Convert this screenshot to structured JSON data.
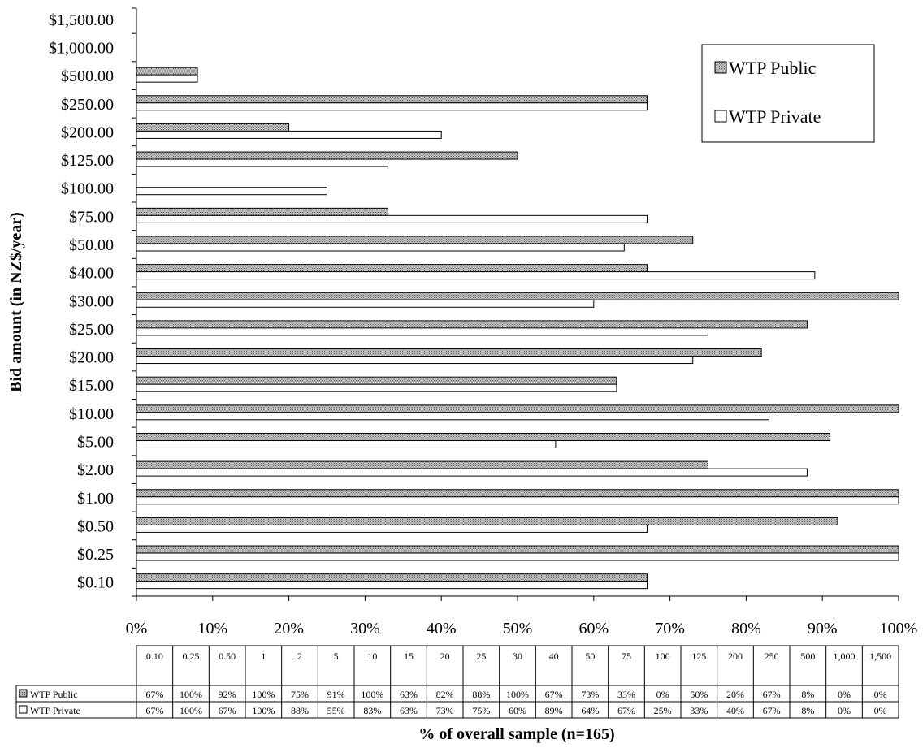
{
  "chart_data": {
    "type": "bar",
    "orientation": "horizontal",
    "categories": [
      "$0.10",
      "$0.25",
      "$0.50",
      "$1.00",
      "$2.00",
      "$5.00",
      "$10.00",
      "$15.00",
      "$20.00",
      "$25.00",
      "$30.00",
      "$40.00",
      "$50.00",
      "$75.00",
      "$100.00",
      "$125.00",
      "$200.00",
      "$250.00",
      "$500.00",
      "$1,000.00",
      "$1,500.00"
    ],
    "series": [
      {
        "name": "WTP Public",
        "values": [
          0.67,
          1.0,
          0.92,
          1.0,
          0.75,
          0.91,
          1.0,
          0.63,
          0.82,
          0.88,
          1.0,
          0.67,
          0.73,
          0.33,
          0.0,
          0.5,
          0.2,
          0.67,
          0.08,
          0.0,
          0.0
        ],
        "color": "#a8a8a8",
        "pattern": "dotted"
      },
      {
        "name": "WTP Private",
        "values": [
          0.67,
          1.0,
          0.67,
          1.0,
          0.88,
          0.55,
          0.83,
          0.63,
          0.73,
          0.75,
          0.6,
          0.89,
          0.64,
          0.67,
          0.25,
          0.33,
          0.4,
          0.67,
          0.08,
          0.0,
          0.0
        ],
        "color": "#ffffff"
      }
    ],
    "xlabel": "% of overall sample (n=165)",
    "ylabel": "Bid amount (in NZ$/year)",
    "xlim": [
      0,
      1
    ],
    "x_ticks": [
      "0%",
      "10%",
      "20%",
      "30%",
      "40%",
      "50%",
      "60%",
      "70%",
      "80%",
      "90%",
      "100%"
    ],
    "grid": false,
    "legend": {
      "placement": "top-right",
      "entries": [
        "WTP Public",
        "WTP Private"
      ]
    },
    "data_table": {
      "headers": [
        "0.10",
        "0.25",
        "0.50",
        "1",
        "2",
        "5",
        "10",
        "15",
        "20",
        "25",
        "30",
        "40",
        "50",
        "75",
        "100",
        "125",
        "200",
        "250",
        "500",
        "1,000",
        "1,500"
      ],
      "rows": [
        {
          "label": "WTP Public",
          "cells": [
            "67%",
            "100%",
            "92%",
            "100%",
            "75%",
            "91%",
            "100%",
            "63%",
            "82%",
            "88%",
            "100%",
            "67%",
            "73%",
            "33%",
            "0%",
            "50%",
            "20%",
            "67%",
            "8%",
            "0%",
            "0%"
          ]
        },
        {
          "label": "WTP Private",
          "cells": [
            "67%",
            "100%",
            "67%",
            "100%",
            "88%",
            "55%",
            "83%",
            "63%",
            "73%",
            "75%",
            "60%",
            "89%",
            "64%",
            "67%",
            "25%",
            "33%",
            "40%",
            "67%",
            "8%",
            "0%",
            "0%"
          ]
        }
      ]
    }
  }
}
